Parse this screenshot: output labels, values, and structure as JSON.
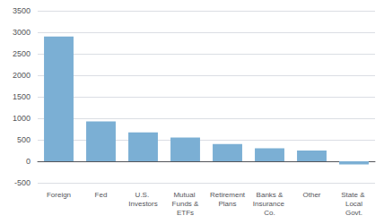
{
  "chart_data": {
    "type": "bar",
    "categories": [
      "Foreign",
      "Fed",
      "U.S. Investors",
      "Mutual Funds &\nETFs",
      "Retirement\nPlans",
      "Banks &\nInsurance Co.",
      "Other",
      "State & Local\nGovt."
    ],
    "values": [
      2900,
      925,
      670,
      550,
      400,
      300,
      250,
      -75
    ],
    "color": "#7BAFD4",
    "ylim": [
      -500,
      3500
    ],
    "yticks": [
      -500,
      0,
      500,
      1000,
      1500,
      2000,
      2500,
      3000,
      3500
    ],
    "grid": true
  }
}
